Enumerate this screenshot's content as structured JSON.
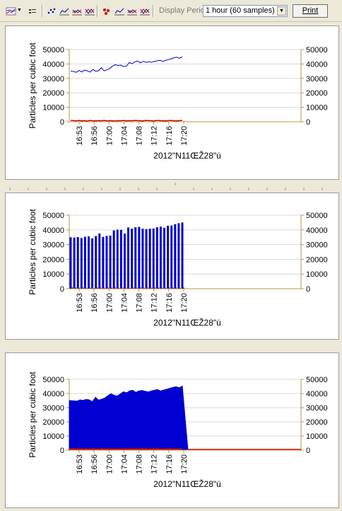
{
  "toolbar": {
    "icons": [
      "line-chart-menu-icon",
      "legend-icon",
      "scatter-icon",
      "line-chart-icon",
      "area-chart-icon",
      "bar-chart-icon",
      "scatter-markers-icon",
      "line-markers-icon",
      "area-markers-icon",
      "bar-markers-icon"
    ],
    "period_label": "Display Period:",
    "period_value": "1 hour (60 samples)",
    "print_label": "Print"
  },
  "colors": {
    "series_high": "#0000d0",
    "series_low": "#d00000",
    "axis": "#b89a3a",
    "grid": "#d9d9d9"
  },
  "chart_data": [
    {
      "type": "line",
      "title": "",
      "ylabel": "Particles per cubic foot",
      "xlabel": "2012\"N11ŒŽ28\"ú",
      "x_ticks": [
        "16:53",
        "16:56",
        "17:00",
        "17:04",
        "17:08",
        "17:12",
        "17:16",
        "17:20"
      ],
      "y_ticks": [
        "0",
        "10000",
        "20000",
        "30000",
        "40000",
        "50000"
      ],
      "ylim": [
        0,
        50000
      ],
      "grid": true,
      "series": [
        {
          "values": [
            35000,
            34800,
            34200,
            35500,
            34500,
            35800,
            35200,
            34400,
            36200,
            35000,
            35300,
            37500,
            35200,
            36000,
            36800,
            38600,
            39500,
            38900,
            39200,
            38200,
            38600,
            41000,
            40200,
            41500,
            42000,
            40800,
            41800,
            41200,
            41500,
            41200,
            41800,
            42200,
            42500,
            41800,
            42500,
            43000,
            43500,
            44300,
            44700,
            43900,
            45000
          ]
        },
        {
          "values": [
            1000,
            800,
            700,
            900,
            600,
            800,
            500,
            900,
            700,
            600,
            800,
            700,
            900,
            600,
            800,
            700,
            500,
            800,
            700,
            900,
            600,
            800,
            700,
            900,
            800,
            700,
            600,
            900,
            800,
            700,
            600,
            900,
            800,
            700,
            600,
            800,
            900,
            700,
            600,
            800,
            900
          ]
        }
      ]
    },
    {
      "type": "bar",
      "title": "",
      "ylabel": "Particles per cubic foot",
      "xlabel": "2012\"N11ŒŽ28\"ú",
      "x_ticks": [
        "16:53",
        "16:56",
        "17:00",
        "17:04",
        "17:08",
        "17:12",
        "17:16",
        "17:20"
      ],
      "y_ticks": [
        "0",
        "10000",
        "20000",
        "30000",
        "40000",
        "50000"
      ],
      "ylim": [
        0,
        50000
      ],
      "grid": true,
      "series": [
        {
          "values": [
            35000,
            34800,
            35100,
            34500,
            35300,
            35600,
            34200,
            35800,
            37600,
            35200,
            35900,
            36100,
            39600,
            40100,
            40000,
            37500,
            41600,
            40800,
            41800,
            42000,
            40800,
            40500,
            40800,
            41000,
            41800,
            42200,
            41400,
            42800,
            43000,
            43900,
            44500,
            45000
          ]
        },
        {
          "values": [
            1000,
            800,
            700,
            900,
            600,
            800,
            500,
            900,
            700,
            600,
            800,
            700,
            900,
            600,
            800,
            700,
            500,
            800,
            700,
            900,
            600,
            800,
            700,
            900,
            800,
            700,
            600,
            900,
            800,
            700,
            600,
            900
          ]
        }
      ]
    },
    {
      "type": "area",
      "title": "",
      "ylabel": "Particles per cubic foot",
      "xlabel": "2012\"N11ŒŽ28\"ú",
      "x_ticks": [
        "16:53",
        "16:56",
        "17:00",
        "17:04",
        "17:08",
        "17:12",
        "17:16",
        "17:20"
      ],
      "y_ticks": [
        "0",
        "10000",
        "20000",
        "30000",
        "40000",
        "50000"
      ],
      "ylim": [
        0,
        50000
      ],
      "grid": true,
      "series": [
        {
          "values": [
            35000,
            34800,
            34600,
            35500,
            35200,
            35800,
            35500,
            34200,
            37300,
            35300,
            36000,
            36800,
            38500,
            39800,
            38800,
            38200,
            39600,
            41200,
            40500,
            41800,
            42300,
            40800,
            41800,
            42200,
            41600,
            41100,
            41800,
            42300,
            42800,
            41800,
            42500,
            43000,
            43700,
            44300,
            44800,
            44000,
            45200
          ]
        },
        {
          "values": [
            1000,
            800,
            700,
            900,
            600,
            800,
            500,
            900,
            700,
            600,
            800,
            700,
            900,
            600,
            800,
            700,
            500,
            800,
            700,
            900,
            600,
            800,
            700,
            900,
            800,
            700,
            600,
            900,
            800,
            700,
            600,
            900,
            800,
            700,
            600,
            800,
            900
          ]
        }
      ]
    }
  ]
}
